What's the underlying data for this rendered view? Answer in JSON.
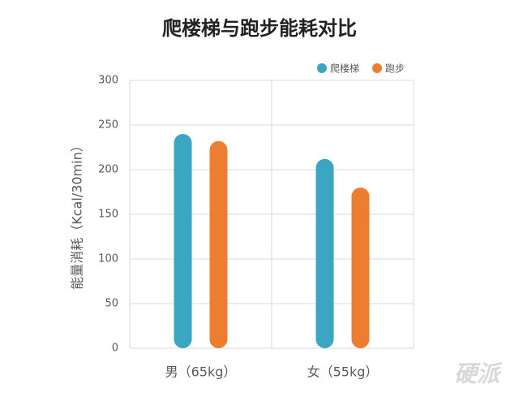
{
  "chart_data": {
    "type": "bar",
    "title": "爬楼梯与跑步能耗对比",
    "y_label": "能量消耗（Kcal/30min）",
    "categories": [
      "男（65kg）",
      "女（55kg）"
    ],
    "series": [
      {
        "name": "爬楼梯",
        "color": "#3aa6c2",
        "values": [
          240,
          212
        ]
      },
      {
        "name": "跑步",
        "color": "#ed7d31",
        "values": [
          232,
          180
        ]
      }
    ],
    "ylim": [
      0,
      300
    ],
    "yticks": [
      0,
      50,
      100,
      150,
      200,
      250,
      300
    ],
    "grid": true,
    "legend": "top-right",
    "watermark": "硬派"
  }
}
